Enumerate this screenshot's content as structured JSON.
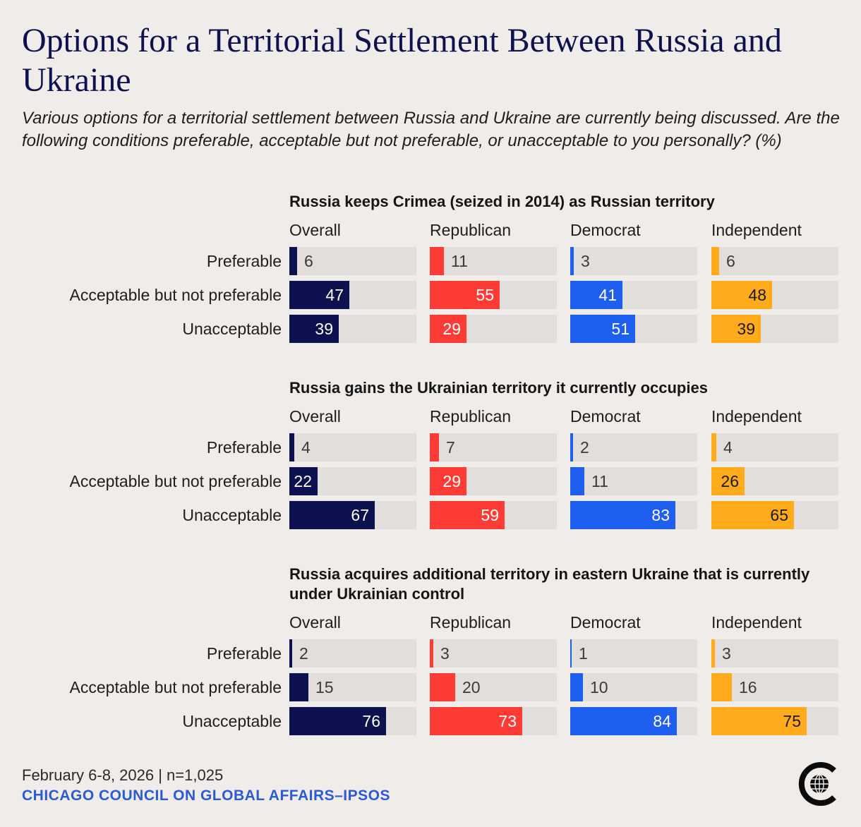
{
  "title": "Options for a Territorial Settlement Between Russia and Ukraine",
  "subtitle": "Various options for a territorial settlement between Russia and Ukraine are currently being discussed. Are the following conditions preferable, acceptable but not preferable, or unacceptable to you personally? (%)",
  "footer": {
    "date": "February 6-8, 2026 | n=1,025",
    "source": "CHICAGO COUNCIL ON GLOBAL AFFAIRS–IPSOS"
  },
  "logo_icon": "chicago-council-globe-icon",
  "colors": {
    "background": "#f0ecea",
    "track": "#e1dedc",
    "Overall": "#0e1150",
    "Republican": "#ff3b35",
    "Democrat": "#1f5fef",
    "Independent": "#ffab1c"
  },
  "chart_data": [
    {
      "type": "bar",
      "title": "Russia keeps Crimea (seized in 2014) as Russian territory",
      "categories": [
        "Preferable",
        "Acceptable but not preferable",
        "Unacceptable"
      ],
      "series": [
        {
          "name": "Overall",
          "values": [
            6,
            47,
            39
          ]
        },
        {
          "name": "Republican",
          "values": [
            11,
            55,
            29
          ]
        },
        {
          "name": "Democrat",
          "values": [
            3,
            41,
            51
          ]
        },
        {
          "name": "Independent",
          "values": [
            6,
            48,
            39
          ]
        }
      ],
      "xlim": [
        0,
        100
      ]
    },
    {
      "type": "bar",
      "title": "Russia gains the Ukrainian territory it currently occupies",
      "categories": [
        "Preferable",
        "Acceptable but not preferable",
        "Unacceptable"
      ],
      "series": [
        {
          "name": "Overall",
          "values": [
            4,
            22,
            67
          ]
        },
        {
          "name": "Republican",
          "values": [
            7,
            29,
            59
          ]
        },
        {
          "name": "Democrat",
          "values": [
            2,
            11,
            83
          ]
        },
        {
          "name": "Independent",
          "values": [
            4,
            26,
            65
          ]
        }
      ],
      "xlim": [
        0,
        100
      ]
    },
    {
      "type": "bar",
      "title": "Russia acquires additional territory in eastern Ukraine that is currently under Ukrainian control",
      "categories": [
        "Preferable",
        "Acceptable but not preferable",
        "Unacceptable"
      ],
      "series": [
        {
          "name": "Overall",
          "values": [
            2,
            15,
            76
          ]
        },
        {
          "name": "Republican",
          "values": [
            3,
            20,
            73
          ]
        },
        {
          "name": "Democrat",
          "values": [
            1,
            10,
            84
          ]
        },
        {
          "name": "Independent",
          "values": [
            3,
            16,
            75
          ]
        }
      ],
      "xlim": [
        0,
        100
      ]
    }
  ]
}
